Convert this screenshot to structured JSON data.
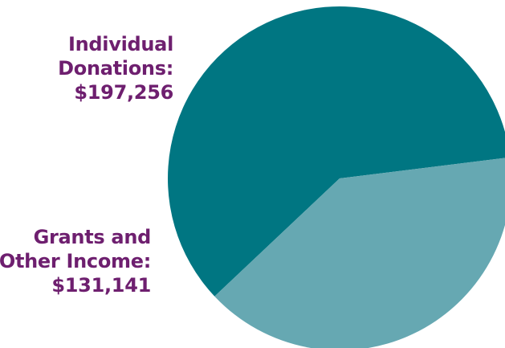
{
  "chart_data": {
    "type": "pie",
    "slices": [
      {
        "label_lines": [
          "Individual",
          "Donations:",
          "$197,256"
        ],
        "value": 197256,
        "color": "#007682"
      },
      {
        "label_lines": [
          "Grants and",
          "Other Income:",
          "$131,141"
        ],
        "value": 131141,
        "color": "#66a8b2"
      }
    ],
    "label_color": "#6e1f6f",
    "legend": "none",
    "grid": false
  }
}
